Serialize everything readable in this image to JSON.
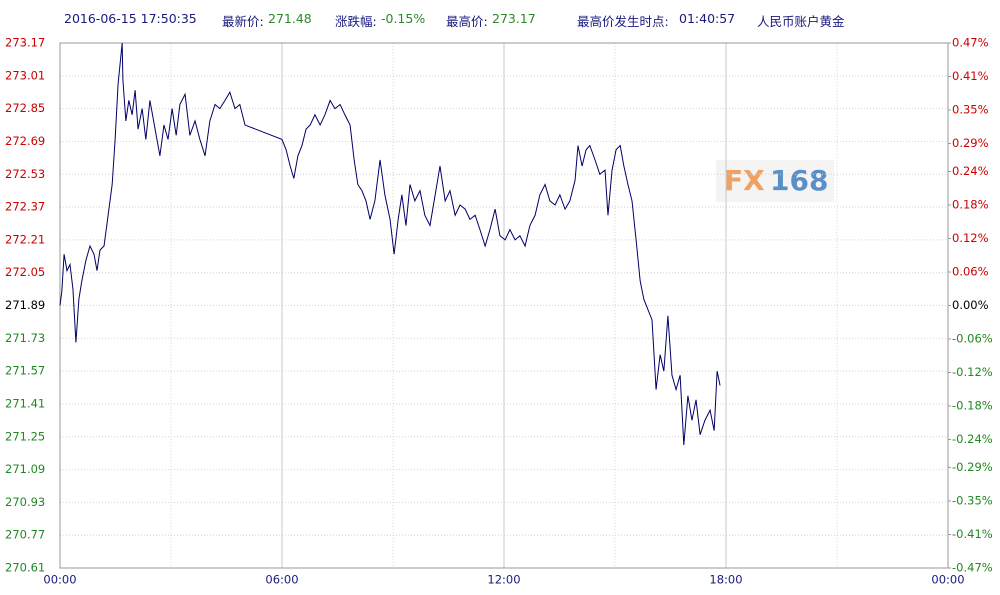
{
  "header": {
    "datetime": "2016-06-15 17:50:35",
    "latest_label": "最新价:",
    "latest": "271.48",
    "change_label": "涨跌幅:",
    "change": "-0.15%",
    "high_label": "最高价:",
    "high": "273.17",
    "high_time_label": "最高价发生时点:",
    "high_time": "01:40:57",
    "product": "人民币账户黄金"
  },
  "watermark": [
    "FX",
    "168"
  ],
  "chart_data": {
    "type": "line",
    "color": "#000066",
    "grid": true,
    "xlim": [
      0,
      24
    ],
    "xticks": [
      {
        "value": 0,
        "label": "00:00"
      },
      {
        "value": 6,
        "label": "06:00"
      },
      {
        "value": 12,
        "label": "12:00"
      },
      {
        "value": 18,
        "label": "18:00"
      },
      {
        "value": 24,
        "label": "00:00"
      }
    ],
    "x_minor_ticks": [
      3,
      9,
      15,
      21
    ],
    "ylim": [
      270.61,
      273.17
    ],
    "yticks": [
      273.17,
      273.01,
      272.85,
      272.69,
      272.53,
      272.37,
      272.21,
      272.05,
      271.89,
      271.73,
      271.57,
      271.41,
      271.25,
      271.09,
      270.93,
      270.77,
      270.61
    ],
    "y2lim": [
      -0.47,
      0.47
    ],
    "y2ticks": [
      {
        "value": 0.47,
        "label": "0.47%"
      },
      {
        "value": 0.41,
        "label": "0.41%"
      },
      {
        "value": 0.35,
        "label": "0.35%"
      },
      {
        "value": 0.29,
        "label": "0.29%"
      },
      {
        "value": 0.24,
        "label": "0.24%"
      },
      {
        "value": 0.18,
        "label": "0.18%"
      },
      {
        "value": 0.12,
        "label": "0.12%"
      },
      {
        "value": 0.06,
        "label": "0.06%"
      },
      {
        "value": 0,
        "label": "0.00%"
      },
      {
        "value": -0.06,
        "label": "-0.06%"
      },
      {
        "value": -0.12,
        "label": "-0.12%"
      },
      {
        "value": -0.18,
        "label": "-0.18%"
      },
      {
        "value": -0.24,
        "label": "-0.24%"
      },
      {
        "value": -0.29,
        "label": "-0.29%"
      },
      {
        "value": -0.35,
        "label": "-0.35%"
      },
      {
        "value": -0.41,
        "label": "-0.41%"
      },
      {
        "value": -0.47,
        "label": "-0.47%"
      }
    ],
    "x": [
      0,
      0.05,
      0.11,
      0.19,
      0.27,
      0.35,
      0.43,
      0.51,
      0.59,
      0.7,
      0.81,
      0.92,
      1.0,
      1.08,
      1.19,
      1.3,
      1.41,
      1.49,
      1.57,
      1.68,
      1.7,
      1.78,
      1.86,
      1.95,
      2.03,
      2.11,
      2.22,
      2.32,
      2.43,
      2.57,
      2.7,
      2.81,
      2.92,
      3.03,
      3.14,
      3.24,
      3.38,
      3.51,
      3.65,
      3.78,
      3.92,
      4.05,
      4.19,
      4.32,
      4.46,
      4.59,
      4.73,
      4.86,
      5.0,
      6.0,
      6.11,
      6.22,
      6.32,
      6.43,
      6.54,
      6.65,
      6.76,
      6.89,
      7.03,
      7.16,
      7.3,
      7.43,
      7.57,
      7.7,
      7.84,
      7.95,
      8.05,
      8.16,
      8.27,
      8.38,
      8.51,
      8.65,
      8.78,
      8.92,
      9.03,
      9.14,
      9.24,
      9.35,
      9.46,
      9.59,
      9.73,
      9.86,
      10.0,
      10.14,
      10.27,
      10.41,
      10.54,
      10.68,
      10.81,
      10.95,
      11.08,
      11.22,
      11.35,
      11.49,
      11.62,
      11.76,
      11.89,
      12.03,
      12.16,
      12.3,
      12.43,
      12.57,
      12.7,
      12.84,
      12.97,
      13.11,
      13.24,
      13.38,
      13.51,
      13.65,
      13.78,
      13.92,
      14.0,
      14.11,
      14.22,
      14.32,
      14.46,
      14.59,
      14.73,
      14.81,
      14.92,
      15.03,
      15.14,
      15.24,
      15.35,
      15.46,
      15.57,
      15.68,
      15.78,
      15.89,
      16.0,
      16.11,
      16.22,
      16.32,
      16.43,
      16.54,
      16.65,
      16.76,
      16.86,
      16.97,
      17.08,
      17.19,
      17.3,
      17.43,
      17.57,
      17.68,
      17.76,
      17.84
    ],
    "series": [
      {
        "name": "人民币账户黄金",
        "color": "#000066",
        "values": [
          271.89,
          271.96,
          272.14,
          272.06,
          272.09,
          271.97,
          271.71,
          271.92,
          272.01,
          272.11,
          272.18,
          272.14,
          272.06,
          272.16,
          272.18,
          272.33,
          272.48,
          272.7,
          272.97,
          273.17,
          272.99,
          272.79,
          272.89,
          272.82,
          272.94,
          272.75,
          272.85,
          272.7,
          272.89,
          272.75,
          272.62,
          272.77,
          272.7,
          272.85,
          272.72,
          272.87,
          272.92,
          272.72,
          272.79,
          272.7,
          272.62,
          272.79,
          272.87,
          272.85,
          272.89,
          272.93,
          272.85,
          272.87,
          272.77,
          272.7,
          272.65,
          272.57,
          272.51,
          272.62,
          272.67,
          272.75,
          272.77,
          272.82,
          272.77,
          272.82,
          272.89,
          272.85,
          272.87,
          272.82,
          272.77,
          272.6,
          272.48,
          272.45,
          272.4,
          272.31,
          272.4,
          272.6,
          272.43,
          272.31,
          272.14,
          272.31,
          272.43,
          272.28,
          272.48,
          272.4,
          272.45,
          272.33,
          272.28,
          272.43,
          272.57,
          272.4,
          272.45,
          272.33,
          272.38,
          272.36,
          272.31,
          272.33,
          272.26,
          272.18,
          272.26,
          272.36,
          272.23,
          272.21,
          272.26,
          272.21,
          272.23,
          272.18,
          272.28,
          272.33,
          272.43,
          272.48,
          272.4,
          272.38,
          272.43,
          272.36,
          272.4,
          272.5,
          272.67,
          272.57,
          272.65,
          272.67,
          272.6,
          272.53,
          272.55,
          272.33,
          272.55,
          272.65,
          272.67,
          272.57,
          272.48,
          272.4,
          272.21,
          272.01,
          271.92,
          271.87,
          271.82,
          271.48,
          271.65,
          271.57,
          271.84,
          271.55,
          271.48,
          271.55,
          271.21,
          271.45,
          271.33,
          271.43,
          271.26,
          271.33,
          271.38,
          271.28,
          271.57,
          271.5
        ]
      }
    ]
  }
}
